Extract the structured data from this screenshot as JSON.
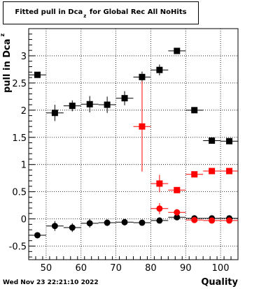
{
  "title": {
    "before": "Fitted pull in Dca",
    "sub": "z",
    "after": "for Global Rec All NoHits"
  },
  "footer": {
    "date": "Wed Nov 23 22:21:10 2022"
  },
  "chart_data": {
    "type": "scatter",
    "xlabel": "Quality",
    "ylabel": {
      "text": "pull in Dca",
      "sub": "z"
    },
    "xlim": [
      45,
      105
    ],
    "ylim": [
      -0.75,
      3.5
    ],
    "x_ticks": [
      50,
      60,
      70,
      80,
      90,
      100
    ],
    "y_ticks": [
      -0.5,
      0,
      0.5,
      1,
      1.5,
      2,
      2.5,
      3
    ],
    "grid": true,
    "legend": "none",
    "series": [
      {
        "color": "#000000",
        "marker": "square",
        "points": [
          {
            "x": 47.5,
            "y": 2.65,
            "err": 0
          },
          {
            "x": 52.5,
            "y": 1.95,
            "err": 0.15
          },
          {
            "x": 57.5,
            "y": 2.08,
            "err": 0.1
          },
          {
            "x": 62.5,
            "y": 2.11,
            "err": 0.15
          },
          {
            "x": 67.5,
            "y": 2.1,
            "err": 0.15
          },
          {
            "x": 72.5,
            "y": 2.22,
            "err": 0.13
          },
          {
            "x": 77.5,
            "y": 2.61,
            "err": 0.1
          },
          {
            "x": 82.5,
            "y": 2.74,
            "err": 0.1
          },
          {
            "x": 87.5,
            "y": 3.09,
            "err": 0
          },
          {
            "x": 92.5,
            "y": 2.0,
            "err": 0
          },
          {
            "x": 97.5,
            "y": 1.44,
            "err": 0
          },
          {
            "x": 102.5,
            "y": 1.43,
            "err": 0
          }
        ]
      },
      {
        "color": "#ff0000",
        "marker": "square",
        "points": [
          {
            "x": 77.5,
            "y": 1.7,
            "err": 0.83
          },
          {
            "x": 82.5,
            "y": 0.65,
            "err": 0.16
          },
          {
            "x": 87.5,
            "y": 0.53,
            "err": 0.05
          },
          {
            "x": 92.5,
            "y": 0.82,
            "err": 0
          },
          {
            "x": 97.5,
            "y": 0.88,
            "err": 0
          },
          {
            "x": 102.5,
            "y": 0.88,
            "err": 0
          }
        ]
      },
      {
        "color": "#000000",
        "marker": "circle",
        "points": [
          {
            "x": 47.5,
            "y": -0.3,
            "err": 0.05
          },
          {
            "x": 52.5,
            "y": -0.13,
            "err": 0.09
          },
          {
            "x": 57.5,
            "y": -0.16,
            "err": 0.08
          },
          {
            "x": 62.5,
            "y": -0.08,
            "err": 0.08
          },
          {
            "x": 67.5,
            "y": -0.07,
            "err": 0.06
          },
          {
            "x": 72.5,
            "y": -0.06,
            "err": 0.06
          },
          {
            "x": 77.5,
            "y": -0.07,
            "err": 0.05
          },
          {
            "x": 82.5,
            "y": -0.03,
            "err": 0.03
          },
          {
            "x": 87.5,
            "y": 0.03,
            "err": 0.03
          },
          {
            "x": 92.5,
            "y": 0.01,
            "err": 0.03
          },
          {
            "x": 97.5,
            "y": 0.01,
            "err": 0.03
          },
          {
            "x": 102.5,
            "y": 0.01,
            "err": 0.03
          }
        ]
      },
      {
        "color": "#ff0000",
        "marker": "circle",
        "points": [
          {
            "x": 82.5,
            "y": 0.19,
            "err": 0.1
          },
          {
            "x": 87.5,
            "y": 0.12,
            "err": 0.06
          },
          {
            "x": 92.5,
            "y": -0.02,
            "err": 0
          },
          {
            "x": 97.5,
            "y": -0.03,
            "err": 0
          },
          {
            "x": 102.5,
            "y": -0.03,
            "err": 0
          }
        ]
      }
    ]
  }
}
